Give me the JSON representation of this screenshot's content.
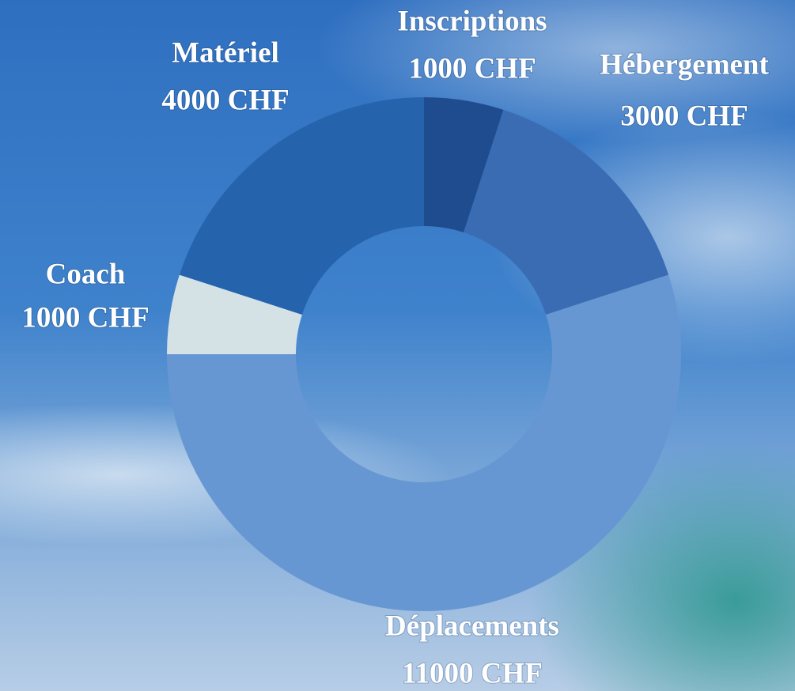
{
  "chart_data": {
    "type": "donut",
    "categories": [
      "Inscriptions",
      "Hébergement",
      "Déplacements",
      "Coach",
      "Matériel"
    ],
    "values": [
      1000,
      3000,
      11000,
      1000,
      4000
    ],
    "value_labels": [
      "1000 CHF",
      "3000 CHF",
      "11000 CHF",
      "1000 CHF",
      "4000 CHF"
    ],
    "colors": [
      "#1f4c8e",
      "#3a6cb4",
      "#6797d3",
      "#d4e2e6",
      "#2663ad"
    ]
  }
}
